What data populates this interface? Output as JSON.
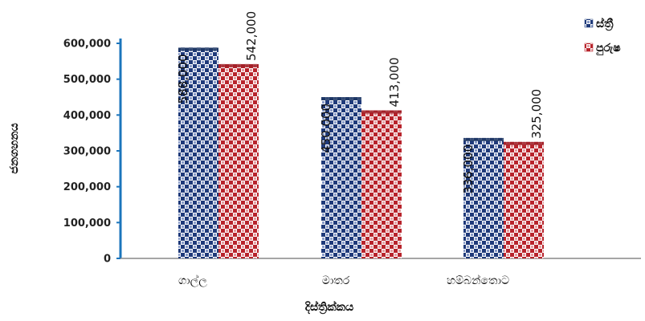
{
  "chart_data": {
    "type": "bar",
    "title": "",
    "xlabel": "දිස්ත්‍රික්කය",
    "ylabel": "ජනගහනය",
    "categories": [
      "ගාල්ල",
      "මාතර",
      "හම්බන්තොට"
    ],
    "series": [
      {
        "name": "ස්ත්‍රී",
        "values": [
          588000,
          450000,
          336000
        ],
        "color": "#1f3a7a"
      },
      {
        "name": "පුරුෂ",
        "values": [
          542000,
          413000,
          325000
        ],
        "color": "#b8242c"
      }
    ],
    "value_labels": {
      "series0": [
        "588,000",
        "450,000",
        "336,000"
      ],
      "series1": [
        "542,000",
        "413,000",
        "325,000"
      ]
    },
    "yticks": [
      "0",
      "100,000",
      "200,000",
      "300,000",
      "400,000",
      "500,000",
      "600,000"
    ],
    "ylim": [
      0,
      600000
    ],
    "grid": false,
    "legend_position": "top-right"
  }
}
